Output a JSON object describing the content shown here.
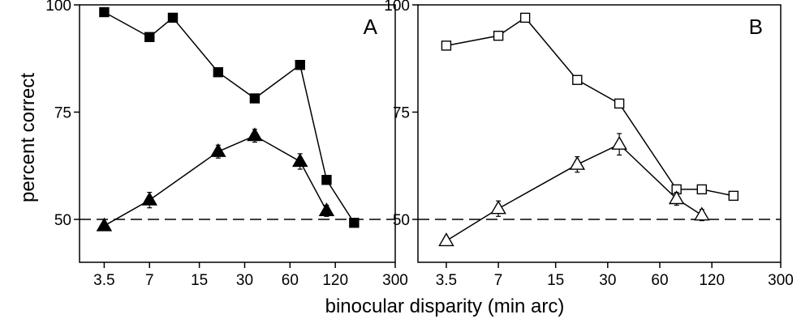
{
  "figure": {
    "ylabel": "percent correct",
    "xlabel": "binocular disparity (min arc)"
  },
  "chart_data": [
    {
      "type": "line",
      "panel_label": "A",
      "x_scale": "log",
      "xlim": [
        2.4,
        300
      ],
      "ylim": [
        40,
        100
      ],
      "x_ticks": [
        3.5,
        7,
        15,
        30,
        60,
        120,
        300
      ],
      "x_tick_labels": [
        "3.5",
        "7",
        "15",
        "30",
        "60",
        "120",
        "300"
      ],
      "y_ticks": [
        50,
        75,
        100
      ],
      "y_tick_labels": [
        "50",
        "75",
        "100"
      ],
      "reference_line": {
        "y": 50,
        "style": "dashed"
      },
      "series": [
        {
          "marker": "square",
          "fill": "#000000",
          "x": [
            3.5,
            7,
            10,
            20,
            35,
            70,
            105,
            160
          ],
          "y": [
            98.3,
            92.5,
            97.0,
            84.3,
            78.2,
            86.0,
            59.2,
            49.2
          ],
          "err": [
            0,
            0,
            0,
            0,
            0,
            0,
            0,
            0
          ]
        },
        {
          "marker": "triangle",
          "fill": "#000000",
          "x": [
            3.5,
            7,
            20,
            35,
            70,
            105
          ],
          "y": [
            48.5,
            54.5,
            65.8,
            69.5,
            63.5,
            52.0
          ],
          "err": [
            0,
            1.8,
            1.5,
            1.5,
            1.8,
            1.3
          ]
        }
      ]
    },
    {
      "type": "line",
      "panel_label": "B",
      "x_scale": "log",
      "xlim": [
        2.4,
        300
      ],
      "ylim": [
        40,
        100
      ],
      "x_ticks": [
        3.5,
        7,
        15,
        30,
        60,
        120,
        300
      ],
      "x_tick_labels": [
        "3.5",
        "7",
        "15",
        "30",
        "60",
        "120",
        "300"
      ],
      "y_ticks": [
        50,
        75,
        100
      ],
      "y_tick_labels": [
        "50",
        "75",
        "100"
      ],
      "reference_line": {
        "y": 50,
        "style": "dashed"
      },
      "series": [
        {
          "marker": "square",
          "fill": "#ffffff",
          "x": [
            3.5,
            7,
            10,
            20,
            35,
            75,
            105,
            160
          ],
          "y": [
            90.5,
            92.8,
            97.0,
            82.5,
            77.0,
            57.0,
            57.0,
            55.5
          ],
          "err": [
            0,
            0,
            0,
            0,
            0,
            0,
            0,
            0
          ]
        },
        {
          "marker": "triangle",
          "fill": "#ffffff",
          "x": [
            3.5,
            7,
            20,
            35,
            75,
            105
          ],
          "y": [
            45.0,
            52.5,
            62.8,
            67.5,
            54.8,
            51.0
          ],
          "err": [
            0,
            1.8,
            1.8,
            2.5,
            1.5,
            1.3
          ]
        }
      ]
    }
  ]
}
